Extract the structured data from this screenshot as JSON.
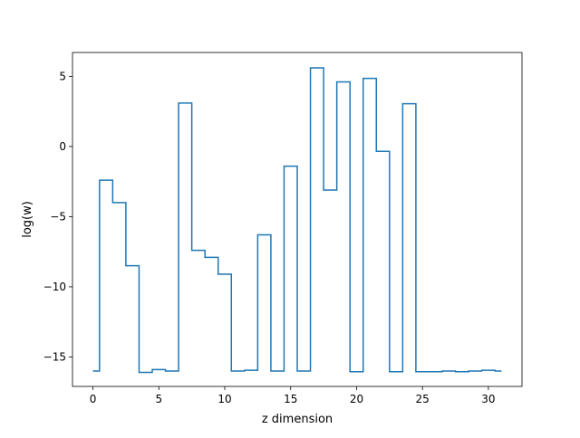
{
  "chart_data": {
    "type": "line",
    "drawstyle": "steps-mid",
    "title": "",
    "xlabel": "z dimension",
    "ylabel": "log(w)",
    "xlim": [
      -1.55,
      32.55
    ],
    "ylim": [
      -17.1,
      6.7
    ],
    "xticks": [
      0,
      5,
      10,
      15,
      20,
      25,
      30
    ],
    "yticks": [
      -15,
      -10,
      -5,
      0,
      5
    ],
    "ytick_labels": [
      "−15",
      "−10",
      "−5",
      "0",
      "5"
    ],
    "grid": false,
    "series": [
      {
        "color": "#1f77b4",
        "x": [
          0,
          1,
          2,
          3,
          4,
          5,
          6,
          7,
          8,
          9,
          10,
          11,
          12,
          13,
          14,
          15,
          16,
          17,
          18,
          19,
          20,
          21,
          22,
          23,
          24,
          25,
          26,
          27,
          28,
          29,
          30,
          31
        ],
        "y": [
          -16.0,
          -2.4,
          -4.0,
          -8.5,
          -16.1,
          -15.9,
          -16.0,
          3.1,
          -7.4,
          -7.9,
          -9.1,
          -16.0,
          -15.95,
          -6.3,
          -16.0,
          -1.4,
          -16.0,
          5.6,
          -3.1,
          4.6,
          -16.05,
          4.85,
          -0.35,
          -16.05,
          3.05,
          -16.05,
          -16.05,
          -16.0,
          -16.05,
          -16.0,
          -15.95,
          -16.0
        ]
      }
    ]
  }
}
